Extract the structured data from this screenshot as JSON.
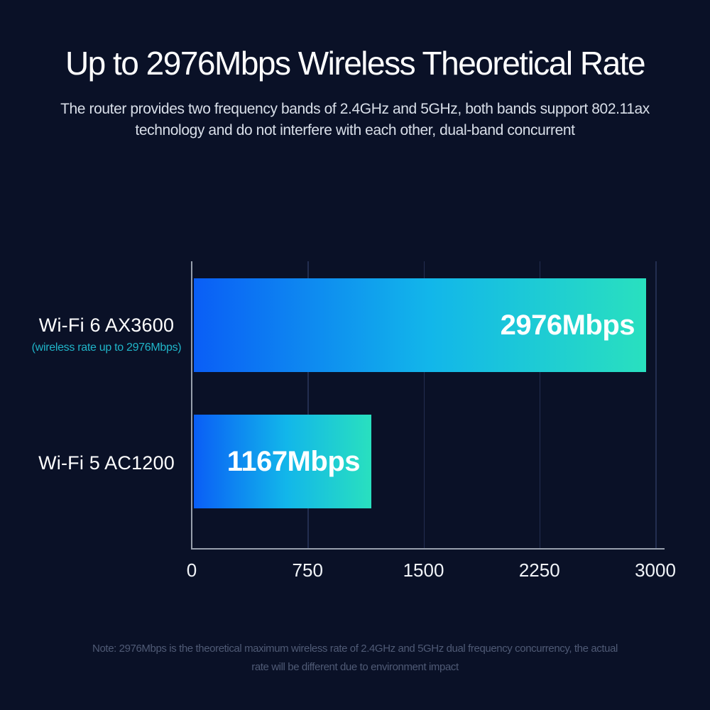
{
  "page": {
    "title": "Up to 2976Mbps Wireless Theoretical Rate",
    "subtitle_line1": "The router provides two frequency bands of 2.4GHz and 5GHz, both bands support 802.11ax",
    "subtitle_line2": "technology and do not interfere with each other, dual-band concurrent",
    "note_line1": "Note: 2976Mbps is the theoretical maximum wireless rate of 2.4GHz and 5GHz dual frequency concurrency, the actual",
    "note_line2": "rate will be different due to environment impact"
  },
  "colors": {
    "background": "#0a1127",
    "bar_gradient_start": "#0a5ef6",
    "bar_gradient_mid": "#12b6ea",
    "bar_gradient_end": "#29e0bf",
    "category_sub_label": "#20b5c9",
    "axis_line": "#98a0ad",
    "gridline": "#232e50",
    "note_text": "#4f5a75"
  },
  "chart_data": {
    "type": "bar",
    "orientation": "horizontal",
    "title": "Up to 2976Mbps Wireless Theoretical Rate",
    "categories": [
      "Wi-Fi 6 AX3600",
      "Wi-Fi 5 AC1200"
    ],
    "category_sublabels": [
      "(wireless rate up to 2976Mbps)",
      ""
    ],
    "values": [
      2976,
      1167
    ],
    "value_labels": [
      "2976Mbps",
      "1167Mbps"
    ],
    "unit": "Mbps",
    "x_axis": {
      "min": 0,
      "max": 3000,
      "ticks": [
        0,
        750,
        1500,
        2250,
        3000
      ]
    },
    "grid": true,
    "legend": false
  }
}
